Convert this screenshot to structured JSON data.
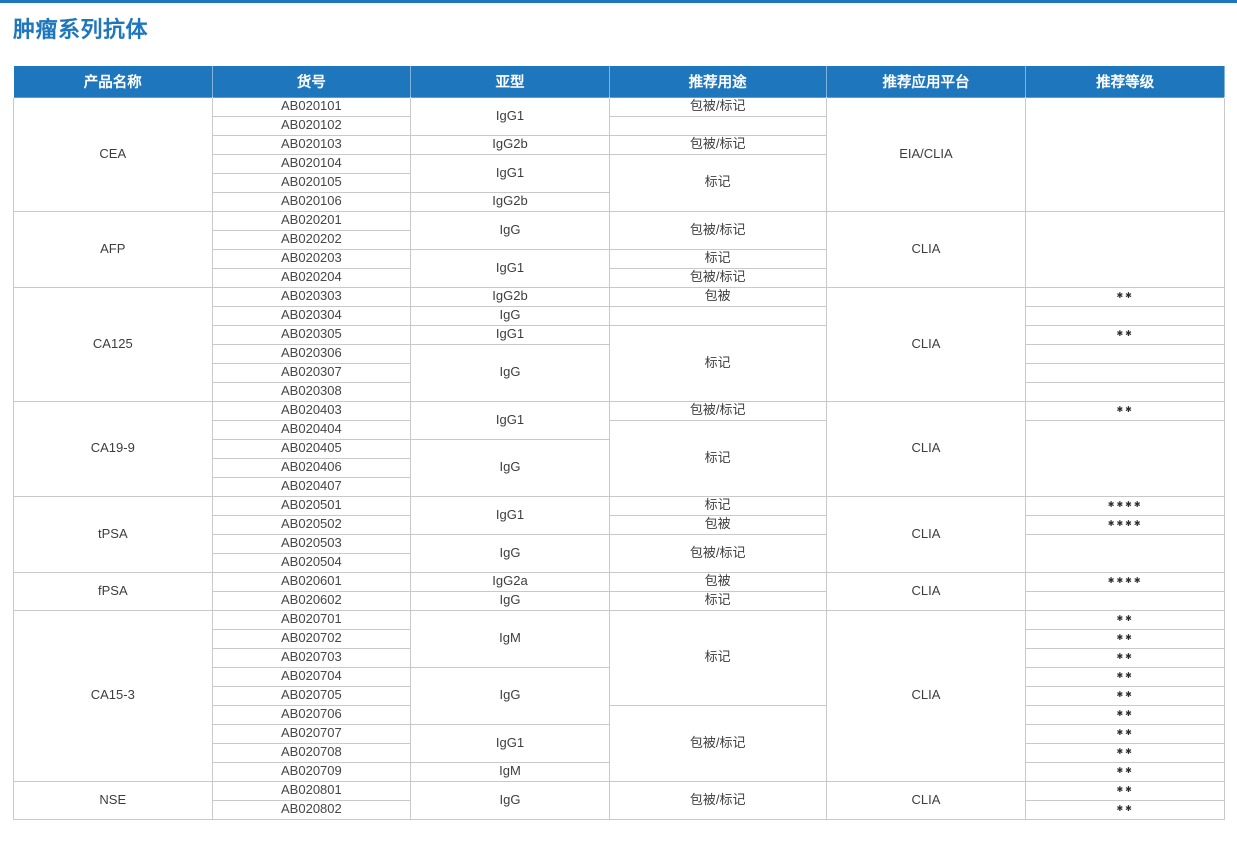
{
  "page": {
    "title": "肿瘤系列抗体",
    "accent_color": "#1E76BD"
  },
  "table": {
    "headers": [
      "产品名称",
      "货号",
      "亚型",
      "推荐用途",
      "推荐应用平台",
      "推荐等级"
    ],
    "groups": [
      {
        "product": "CEA",
        "platform": "EIA/CLIA",
        "catalog": [
          "AB020101",
          "AB020102",
          "AB020103",
          "AB020104",
          "AB020105",
          "AB020106"
        ],
        "subtype": [
          {
            "text": "IgG1",
            "span": 2
          },
          {
            "text": "IgG2b",
            "span": 1
          },
          {
            "text": "IgG1",
            "span": 2
          },
          {
            "text": "IgG2b",
            "span": 1
          }
        ],
        "usage": [
          {
            "text": "包被/标记",
            "span": 1
          },
          {
            "text": "",
            "span": 1
          },
          {
            "text": "包被/标记",
            "span": 1
          },
          {
            "text": "标记",
            "span": 3
          }
        ],
        "grade": [
          {
            "text": "",
            "span": 6
          }
        ]
      },
      {
        "product": "AFP",
        "platform": "CLIA",
        "catalog": [
          "AB020201",
          "AB020202",
          "AB020203",
          "AB020204"
        ],
        "subtype": [
          {
            "text": "IgG",
            "span": 2
          },
          {
            "text": "IgG1",
            "span": 2
          }
        ],
        "usage": [
          {
            "text": "包被/标记",
            "span": 2
          },
          {
            "text": "标记",
            "span": 1
          },
          {
            "text": "包被/标记",
            "span": 1
          }
        ],
        "grade": [
          {
            "text": "",
            "span": 4
          }
        ]
      },
      {
        "product": "CA125",
        "platform": "CLIA",
        "catalog": [
          "AB020303",
          "AB020304",
          "AB020305",
          "AB020306",
          "AB020307",
          "AB020308"
        ],
        "subtype": [
          {
            "text": "IgG2b",
            "span": 1
          },
          {
            "text": "IgG",
            "span": 1
          },
          {
            "text": "IgG1",
            "span": 1
          },
          {
            "text": "IgG",
            "span": 3
          }
        ],
        "usage": [
          {
            "text": "包被",
            "span": 1
          },
          {
            "text": "",
            "span": 1
          },
          {
            "text": "标记",
            "span": 4
          }
        ],
        "grade": [
          {
            "text": "✱✱",
            "span": 1
          },
          {
            "text": "",
            "span": 1
          },
          {
            "text": "✱✱",
            "span": 1
          },
          {
            "text": "",
            "span": 1
          },
          {
            "text": "",
            "span": 1
          },
          {
            "text": "",
            "span": 1
          }
        ]
      },
      {
        "product": "CA19-9",
        "platform": "CLIA",
        "catalog": [
          "AB020403",
          "AB020404",
          "AB020405",
          "AB020406",
          "AB020407"
        ],
        "subtype": [
          {
            "text": "IgG1",
            "span": 2
          },
          {
            "text": "IgG",
            "span": 3
          }
        ],
        "usage": [
          {
            "text": "包被/标记",
            "span": 1
          },
          {
            "text": "标记",
            "span": 4
          }
        ],
        "grade": [
          {
            "text": "✱✱",
            "span": 1
          },
          {
            "text": "",
            "span": 4
          }
        ]
      },
      {
        "product": "tPSA",
        "platform": "CLIA",
        "catalog": [
          "AB020501",
          "AB020502",
          "AB020503",
          "AB020504"
        ],
        "subtype": [
          {
            "text": "IgG1",
            "span": 2
          },
          {
            "text": "IgG",
            "span": 2
          }
        ],
        "usage": [
          {
            "text": "标记",
            "span": 1
          },
          {
            "text": "包被",
            "span": 1
          },
          {
            "text": "包被/标记",
            "span": 2
          }
        ],
        "grade": [
          {
            "text": "✱✱✱✱",
            "span": 1
          },
          {
            "text": "✱✱✱✱",
            "span": 1
          },
          {
            "text": "",
            "span": 2
          }
        ]
      },
      {
        "product": "fPSA",
        "platform": "CLIA",
        "catalog": [
          "AB020601",
          "AB020602"
        ],
        "subtype": [
          {
            "text": "IgG2a",
            "span": 1
          },
          {
            "text": "IgG",
            "span": 1
          }
        ],
        "usage": [
          {
            "text": "包被",
            "span": 1
          },
          {
            "text": "标记",
            "span": 1
          }
        ],
        "grade": [
          {
            "text": "✱✱✱✱",
            "span": 1
          },
          {
            "text": "",
            "span": 1
          }
        ]
      },
      {
        "product": "CA15-3",
        "platform": "CLIA",
        "catalog": [
          "AB020701",
          "AB020702",
          "AB020703",
          "AB020704",
          "AB020705",
          "AB020706",
          "AB020707",
          "AB020708",
          "AB020709"
        ],
        "subtype": [
          {
            "text": "IgM",
            "span": 3
          },
          {
            "text": "IgG",
            "span": 3
          },
          {
            "text": "IgG1",
            "span": 2
          },
          {
            "text": "IgM",
            "span": 1
          }
        ],
        "usage": [
          {
            "text": "标记",
            "span": 5
          },
          {
            "text": "包被/标记",
            "span": 4
          }
        ],
        "grade": [
          {
            "text": "✱✱",
            "span": 1
          },
          {
            "text": "✱✱",
            "span": 1
          },
          {
            "text": "✱✱",
            "span": 1
          },
          {
            "text": "✱✱",
            "span": 1
          },
          {
            "text": "✱✱",
            "span": 1
          },
          {
            "text": "✱✱",
            "span": 1
          },
          {
            "text": "✱✱",
            "span": 1
          },
          {
            "text": "✱✱",
            "span": 1
          },
          {
            "text": "✱✱",
            "span": 1
          }
        ]
      },
      {
        "product": "NSE",
        "platform": "CLIA",
        "catalog": [
          "AB020801",
          "AB020802"
        ],
        "subtype": [
          {
            "text": "IgG",
            "span": 2
          }
        ],
        "usage": [
          {
            "text": "包被/标记",
            "span": 2
          }
        ],
        "grade": [
          {
            "text": "✱✱",
            "span": 1
          },
          {
            "text": "✱✱",
            "span": 1
          }
        ]
      }
    ]
  }
}
